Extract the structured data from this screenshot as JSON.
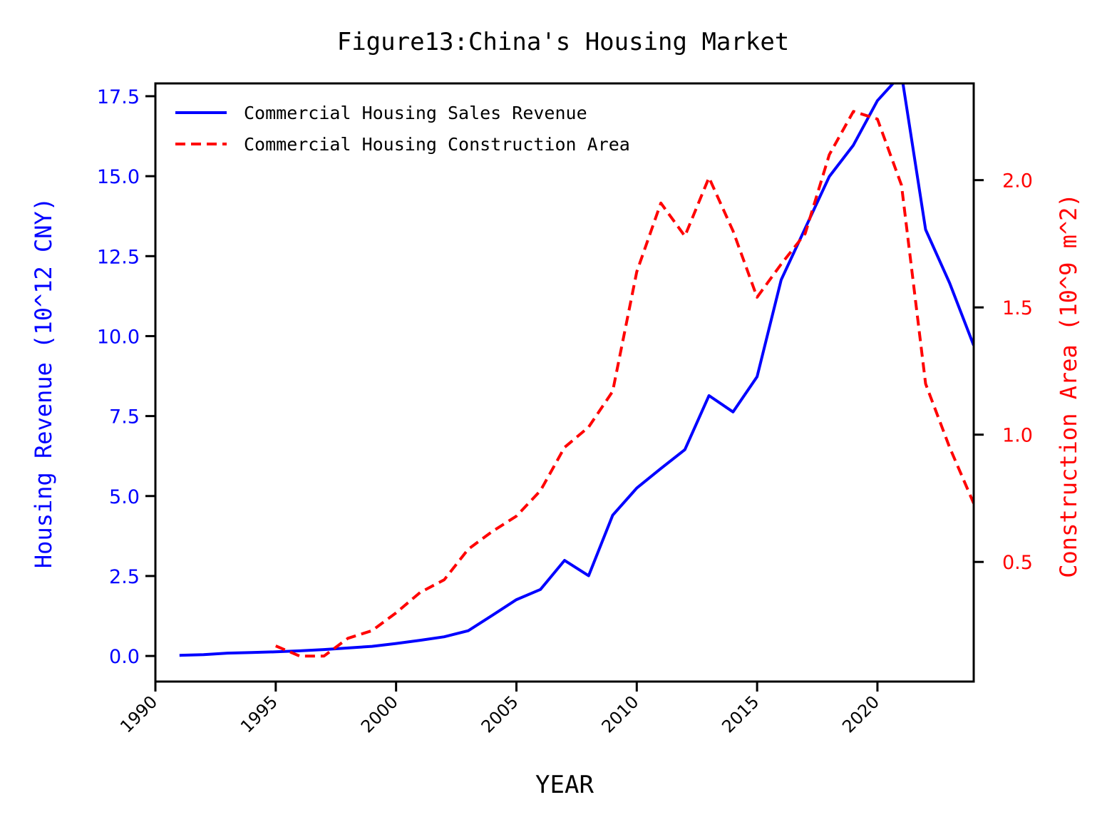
{
  "chart_data": {
    "type": "line",
    "title": "Figure13:China's Housing Market",
    "xlabel": "YEAR",
    "xlim": [
      1990,
      2024
    ],
    "xticks": [
      1990,
      1995,
      2000,
      2005,
      2010,
      2015,
      2020
    ],
    "y_left": {
      "label": "Housing Revenue (10^12 CNY)",
      "lim": [
        -0.8,
        17.9
      ],
      "ticks": [
        0.0,
        2.5,
        5.0,
        7.5,
        10.0,
        12.5,
        15.0,
        17.5
      ],
      "tick_labels": [
        "0.0",
        "2.5",
        "5.0",
        "7.5",
        "10.0",
        "12.5",
        "15.0",
        "17.5"
      ],
      "color": "#0000ff"
    },
    "y_right": {
      "label": "Construction Area (10^9 m^2)",
      "lim": [
        0.03,
        2.38
      ],
      "ticks": [
        0.5,
        1.0,
        1.5,
        2.0
      ],
      "tick_labels": [
        "0.5",
        "1.0",
        "1.5",
        "2.0"
      ],
      "color": "#ff0000"
    },
    "legend_position": "top-left",
    "series": [
      {
        "name": "Commercial Housing Sales Revenue",
        "axis": "left",
        "style": "solid",
        "color": "#0000ff",
        "x": [
          1991,
          1992,
          1993,
          1994,
          1995,
          1996,
          1997,
          1998,
          1999,
          2000,
          2001,
          2002,
          2003,
          2004,
          2005,
          2006,
          2007,
          2008,
          2009,
          2010,
          2011,
          2012,
          2013,
          2014,
          2015,
          2016,
          2017,
          2018,
          2019,
          2020,
          2021,
          2022,
          2023,
          2024
        ],
        "y": [
          0.02,
          0.04,
          0.09,
          0.11,
          0.13,
          0.16,
          0.2,
          0.25,
          0.3,
          0.39,
          0.49,
          0.6,
          0.79,
          1.27,
          1.76,
          2.08,
          2.99,
          2.51,
          4.4,
          5.25,
          5.86,
          6.45,
          8.14,
          7.63,
          8.73,
          11.76,
          13.37,
          14.99,
          15.97,
          17.36,
          18.19,
          13.33,
          11.66,
          9.71
        ]
      },
      {
        "name": "Commercial Housing Construction Area",
        "axis": "right",
        "style": "dashed",
        "color": "#ff0000",
        "x": [
          1995,
          1996,
          1997,
          1998,
          1999,
          2000,
          2001,
          2002,
          2003,
          2004,
          2005,
          2006,
          2007,
          2008,
          2009,
          2010,
          2011,
          2012,
          2013,
          2014,
          2015,
          2016,
          2017,
          2018,
          2019,
          2020,
          2021,
          2022,
          2023,
          2024
        ],
        "y": [
          0.17,
          0.13,
          0.13,
          0.2,
          0.23,
          0.3,
          0.38,
          0.43,
          0.55,
          0.62,
          0.68,
          0.78,
          0.95,
          1.03,
          1.17,
          1.64,
          1.91,
          1.78,
          2.01,
          1.8,
          1.54,
          1.67,
          1.79,
          2.1,
          2.27,
          2.24,
          1.98,
          1.2,
          0.95,
          0.73
        ]
      }
    ]
  }
}
